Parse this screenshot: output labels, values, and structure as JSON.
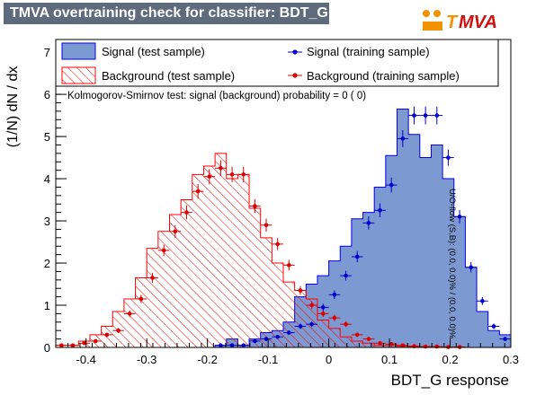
{
  "header": {
    "title": "TMVA overtraining check for classifier: BDT_G"
  },
  "logo": {
    "text": "TMVA"
  },
  "annotations": {
    "ks_text": "Kolmogorov-Smirnov test: signal (background) probability =     0 (     0)",
    "uo_text": "U/O-flow (S,B): (0.0, 0.0)% / (0.0, 0.0)%"
  },
  "colors": {
    "signal_fill": "#7d99d1",
    "signal_line": "#0000ee",
    "signal_point": "#0000cc",
    "background_line": "#ff0000",
    "background_point": "#dd0000",
    "title_bg": "#5d6b7d"
  },
  "chart_data": {
    "type": "histogram",
    "xlabel": "BDT_G response",
    "ylabel": "(1/N) dN / dx",
    "xlim": [
      -0.45,
      0.3
    ],
    "ylim": [
      0,
      7.3
    ],
    "x_ticks": [
      -0.4,
      -0.3,
      -0.2,
      -0.1,
      0,
      0.1,
      0.2,
      0.3
    ],
    "x_tick_labels": [
      "-0.4",
      "-0.3",
      "-0.2",
      "-0.1",
      "0",
      "0.1",
      "0.2",
      "0.3"
    ],
    "y_ticks": [
      0,
      1,
      2,
      3,
      4,
      5,
      6,
      7
    ],
    "y_tick_labels": [
      "0",
      "1",
      "2",
      "3",
      "4",
      "5",
      "6",
      "7"
    ],
    "bin_width": 0.01875,
    "bins_low_edges": [
      -0.45,
      -0.43125,
      -0.4125,
      -0.39375,
      -0.375,
      -0.35625,
      -0.3375,
      -0.31875,
      -0.3,
      -0.28125,
      -0.2625,
      -0.24375,
      -0.225,
      -0.20625,
      -0.1875,
      -0.16875,
      -0.15,
      -0.13125,
      -0.1125,
      -0.09375,
      -0.075,
      -0.05625,
      -0.0375,
      -0.01875,
      0.0,
      0.01875,
      0.0375,
      0.05625,
      0.075,
      0.09375,
      0.1125,
      0.13125,
      0.15,
      0.16875,
      0.1875,
      0.20625,
      0.225,
      0.24375,
      0.2625,
      0.28125
    ],
    "legend": [
      {
        "label": "Signal (test sample)"
      },
      {
        "label": "Signal (training sample)"
      },
      {
        "label": "Background (test sample)"
      },
      {
        "label": "Background (training sample)"
      }
    ],
    "series": [
      {
        "name": "Signal (test sample)",
        "style": "filled-histogram",
        "values": [
          0,
          0,
          0,
          0,
          0,
          0,
          0,
          0,
          0,
          0,
          0,
          0,
          0,
          0,
          0.05,
          0.2,
          0.05,
          0.2,
          0.35,
          0.4,
          0.6,
          1.2,
          1.5,
          1.7,
          2.05,
          2.4,
          3.05,
          3.2,
          3.8,
          4.55,
          5.65,
          5.05,
          4.5,
          4.8,
          4.0,
          3.1,
          1.9,
          0.85,
          0.4,
          0.3
        ]
      },
      {
        "name": "Signal (training sample)",
        "style": "points",
        "values": [
          0,
          0,
          0,
          0,
          0,
          0,
          0,
          0,
          0,
          0,
          0,
          0,
          0,
          0,
          0.05,
          0.05,
          0.05,
          0.15,
          0.2,
          0.25,
          0.35,
          0.5,
          0.55,
          0.95,
          1.25,
          1.7,
          2.15,
          2.95,
          3.25,
          3.85,
          4.95,
          5.5,
          5.5,
          5.5,
          4.5,
          3.1,
          1.9,
          1.1,
          0.5,
          0.2
        ]
      },
      {
        "name": "Background (test sample)",
        "style": "hatched-histogram",
        "values": [
          0.05,
          0.05,
          0.15,
          0.3,
          0.5,
          0.85,
          1.15,
          1.65,
          2.35,
          2.75,
          3.15,
          3.5,
          4.1,
          4.3,
          4.6,
          4.0,
          4.1,
          3.3,
          2.6,
          2.0,
          1.55,
          1.35,
          1.15,
          0.65,
          0.45,
          0.25,
          0.15,
          0.1,
          0.05,
          0.05,
          0.03,
          0.02,
          0.02,
          0.01,
          0.01,
          0,
          0,
          0,
          0,
          0
        ]
      },
      {
        "name": "Background (training sample)",
        "style": "points",
        "values": [
          0.05,
          0.05,
          0.1,
          0.15,
          0.3,
          0.4,
          0.8,
          1.15,
          1.65,
          2.3,
          2.75,
          3.2,
          3.7,
          4.05,
          4.25,
          4.1,
          4.1,
          3.35,
          2.9,
          2.45,
          1.95,
          1.35,
          1.0,
          0.8,
          0.7,
          0.55,
          0.3,
          0.2,
          0.1,
          0.08,
          0.05,
          0.03,
          0.02,
          0.02,
          0.01,
          0.01,
          0,
          0,
          0,
          0
        ]
      }
    ]
  }
}
